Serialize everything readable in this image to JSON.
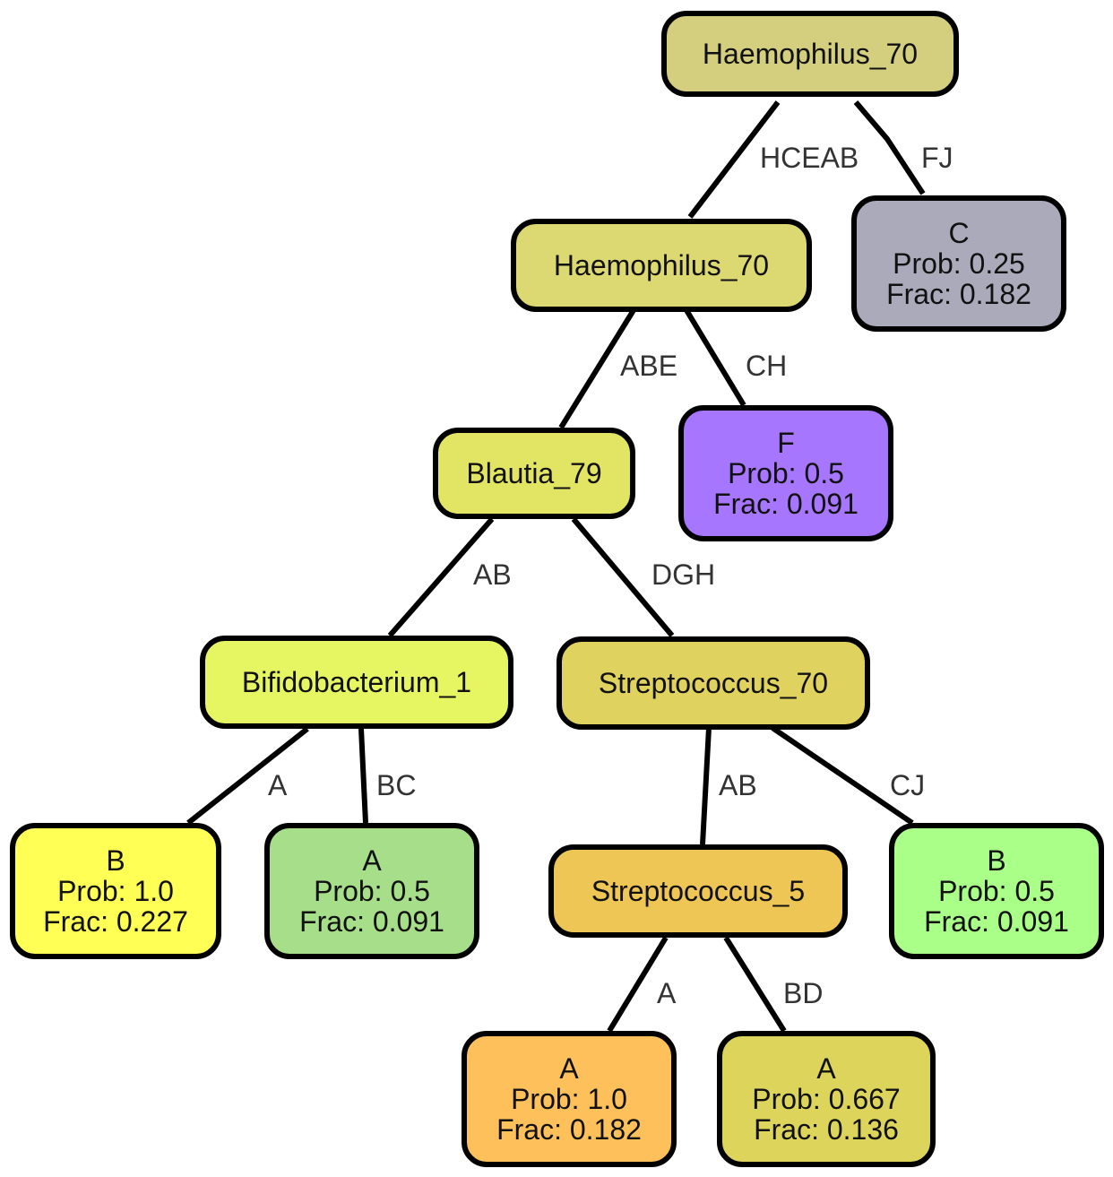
{
  "nodes": [
    {
      "id": "n0",
      "name": "root-node-haemophilus",
      "lines": [
        "Haemophilus_70"
      ],
      "color": "#d4cf7e"
    },
    {
      "id": "n1",
      "name": "node-haemophilus",
      "lines": [
        "Haemophilus_70"
      ],
      "color": "#dcd872"
    },
    {
      "id": "n2",
      "name": "leaf-c",
      "lines": [
        "C",
        "Prob: 0.25",
        "Frac: 0.182"
      ],
      "color": "#abaabb"
    },
    {
      "id": "n3",
      "name": "node-blautia",
      "lines": [
        "Blautia_79"
      ],
      "color": "#e2e463"
    },
    {
      "id": "n4",
      "name": "leaf-f",
      "lines": [
        "F",
        "Prob: 0.5",
        "Frac: 0.091"
      ],
      "color": "#a676ff"
    },
    {
      "id": "n5",
      "name": "node-bifidobacterium",
      "lines": [
        "Bifidobacterium_1"
      ],
      "color": "#e6f662"
    },
    {
      "id": "n6",
      "name": "node-streptococcus-70",
      "lines": [
        "Streptococcus_70"
      ],
      "color": "#e0d25e"
    },
    {
      "id": "n7",
      "name": "leaf-b-bifido",
      "lines": [
        "B",
        "Prob: 1.0",
        "Frac: 0.227"
      ],
      "color": "#ffff55"
    },
    {
      "id": "n8",
      "name": "leaf-a-bifido",
      "lines": [
        "A",
        "Prob: 0.5",
        "Frac: 0.091"
      ],
      "color": "#a7de8a"
    },
    {
      "id": "n9",
      "name": "node-streptococcus-5",
      "lines": [
        "Streptococcus_5"
      ],
      "color": "#eec655"
    },
    {
      "id": "n10",
      "name": "leaf-b-strep",
      "lines": [
        "B",
        "Prob: 0.5",
        "Frac: 0.091"
      ],
      "color": "#aaff88"
    },
    {
      "id": "n11",
      "name": "leaf-a-strep5-left",
      "lines": [
        "A",
        "Prob: 1.0",
        "Frac: 0.182"
      ],
      "color": "#fec05a"
    },
    {
      "id": "n12",
      "name": "leaf-a-strep5-right",
      "lines": [
        "A",
        "Prob: 0.667",
        "Frac: 0.136"
      ],
      "color": "#ddd55b"
    }
  ],
  "edges": [
    {
      "from": "n0",
      "to": "n1",
      "label": "HCEAB"
    },
    {
      "from": "n0",
      "to": "n2",
      "label": "FJ"
    },
    {
      "from": "n1",
      "to": "n3",
      "label": "ABE"
    },
    {
      "from": "n1",
      "to": "n4",
      "label": "CH"
    },
    {
      "from": "n3",
      "to": "n5",
      "label": "AB"
    },
    {
      "from": "n3",
      "to": "n6",
      "label": "DGH"
    },
    {
      "from": "n5",
      "to": "n7",
      "label": "A"
    },
    {
      "from": "n5",
      "to": "n8",
      "label": "BC"
    },
    {
      "from": "n6",
      "to": "n9",
      "label": "AB"
    },
    {
      "from": "n6",
      "to": "n10",
      "label": "CJ"
    },
    {
      "from": "n9",
      "to": "n11",
      "label": "A"
    },
    {
      "from": "n9",
      "to": "n12",
      "label": "BD"
    }
  ]
}
